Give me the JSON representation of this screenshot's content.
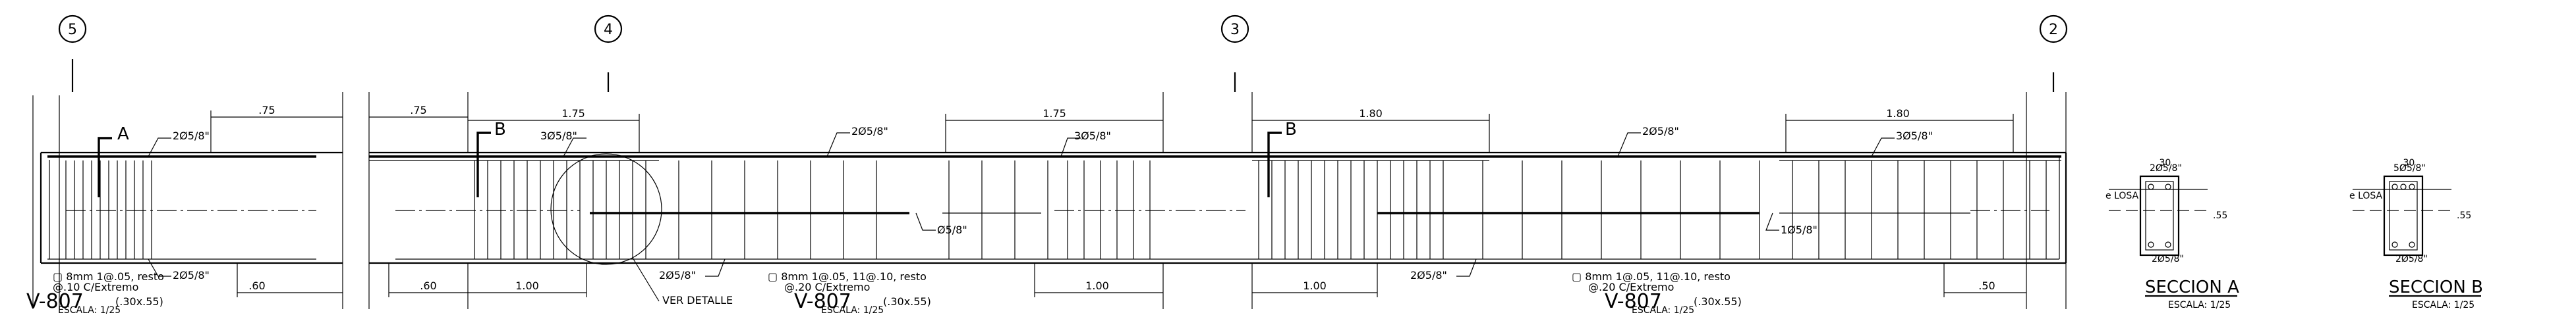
{
  "axes": [
    {
      "label": "5"
    },
    {
      "label": "4"
    },
    {
      "label": "3"
    },
    {
      "label": "2"
    }
  ],
  "dimensions": {
    "top": [
      ".75",
      ".75",
      "1.75",
      "1.75",
      "1.80",
      "1.80"
    ],
    "bottom": [
      ".60",
      ".60",
      "1.00",
      "1.00",
      "1.00",
      ".50"
    ]
  },
  "rebar": {
    "labels_top": [
      "2Ø5/8\"",
      "3Ø5/8\"",
      "2Ø5/8\"",
      "3Ø5/8\"",
      "2Ø5/8\"",
      "3Ø5/8\""
    ],
    "labels_bottom": [
      "2Ø5/8\"",
      "2Ø5/8\"",
      "Ø5/8\"",
      "2Ø5/8\"",
      "1Ø5/8\""
    ]
  },
  "cuts": [
    "A",
    "B",
    "B"
  ],
  "detail_note": "VER DETALLE",
  "beams": [
    {
      "stirrups_line1": "▢ 8mm 1@.05, resto",
      "stirrups_line2": "@.10 C/Extremo",
      "name": "V-807",
      "size": "(.30x.55)",
      "scale": "ESCALA: 1/25"
    },
    {
      "stirrups_line1": "▢ 8mm 1@.05, 11@.10, resto",
      "stirrups_line2": "@.20 C/Extremo",
      "name": "V-807",
      "size": "(.30x.55)",
      "scale": "ESCALA: 1/25"
    },
    {
      "stirrups_line1": "▢ 8mm 1@.05, 11@.10, resto",
      "stirrups_line2": "@.20 C/Extremo",
      "name": "V-807",
      "size": "(.30x.55)",
      "scale": "ESCALA: 1/25"
    }
  ],
  "sections": [
    {
      "title": "SECCION A",
      "scale": "ESCALA: 1/25",
      "top_bars": "2Ø5/8\"",
      "bottom_bars": "2Ø5/8\"",
      "width": ".30",
      "height": ".55",
      "slab": "e LOSA"
    },
    {
      "title": "SECCION B",
      "scale": "ESCALA: 1/25",
      "top_bars": "5Ø5/8\"",
      "bottom_bars": "2Ø5/8\"",
      "width": ".30",
      "height": ".55",
      "slab": "e LOSA"
    }
  ]
}
